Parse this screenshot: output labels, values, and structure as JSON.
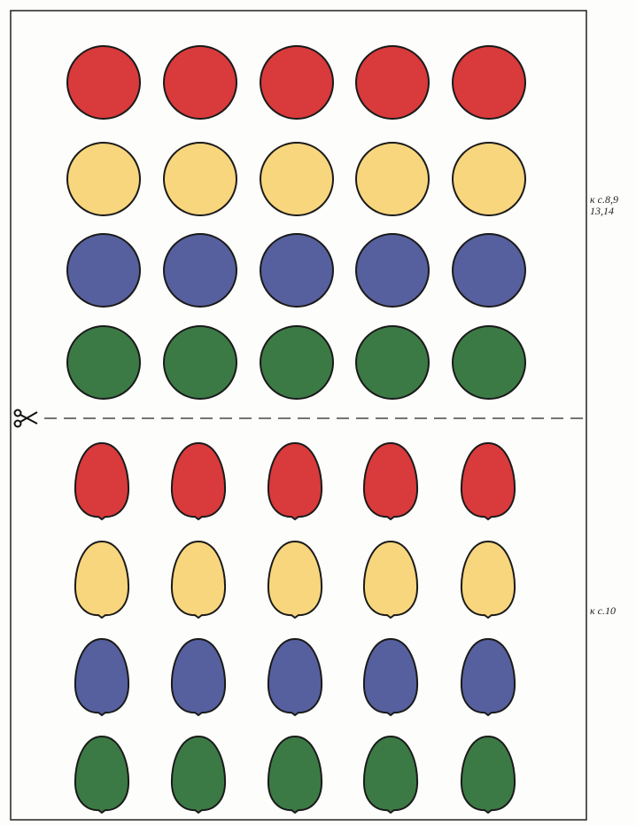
{
  "circles_reference": {
    "line1": "к с.8,9",
    "line2": "13,14"
  },
  "eggs_reference": {
    "line1": "к с.10"
  }
}
